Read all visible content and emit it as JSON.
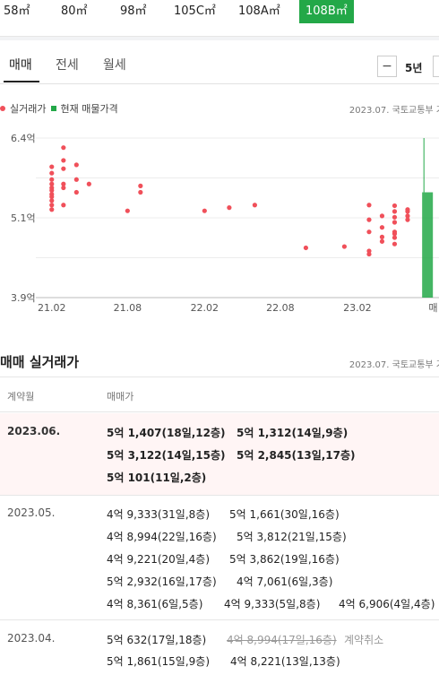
{
  "size_tabs": [
    "58㎡",
    "80㎡",
    "98㎡",
    "105C㎡",
    "108A㎡",
    "108B㎡"
  ],
  "selected_size": "108B㎡",
  "trade_tabs": [
    "매매",
    "전세",
    "월세"
  ],
  "active_tab": "매매",
  "period_minus": "−",
  "period_value": "5년",
  "legend": {
    "actual": "실거래가",
    "current": "현재 매물가격"
  },
  "source_label": "2023.07. 국토교통부 기",
  "colors": {
    "accent": "#23a848",
    "actual_point": "#f0505a",
    "highlight_row": "#fff5f5"
  },
  "chart_data": {
    "type": "scatter",
    "y_ticks": [
      "6.4억",
      "5.1억",
      "3.9억"
    ],
    "x_ticks": [
      "21.02",
      "21.08",
      "22.02",
      "22.08",
      "23.02",
      "매"
    ],
    "ylim": [
      3.9,
      6.4
    ],
    "x_domain": [
      "2020-12-25",
      "2023-08-15"
    ],
    "grid": true,
    "series": [
      {
        "name": "실거래가",
        "type": "scatter",
        "points": [
          [
            "2021-02-01",
            5.95
          ],
          [
            "2021-02-01",
            5.85
          ],
          [
            "2021-02-01",
            5.75
          ],
          [
            "2021-02-01",
            5.68
          ],
          [
            "2021-02-01",
            5.62
          ],
          [
            "2021-02-01",
            5.58
          ],
          [
            "2021-02-01",
            5.52
          ],
          [
            "2021-02-01",
            5.48
          ],
          [
            "2021-02-01",
            5.42
          ],
          [
            "2021-02-01",
            5.35
          ],
          [
            "2021-02-01",
            5.28
          ],
          [
            "2021-03-01",
            6.25
          ],
          [
            "2021-03-01",
            6.05
          ],
          [
            "2021-03-01",
            5.92
          ],
          [
            "2021-03-01",
            5.68
          ],
          [
            "2021-03-01",
            5.62
          ],
          [
            "2021-03-01",
            5.35
          ],
          [
            "2021-04-01",
            5.98
          ],
          [
            "2021-04-01",
            5.75
          ],
          [
            "2021-04-01",
            5.55
          ],
          [
            "2021-05-01",
            5.68
          ],
          [
            "2021-08-01",
            5.26
          ],
          [
            "2021-09-01",
            5.65
          ],
          [
            "2021-09-01",
            5.55
          ],
          [
            "2022-02-01",
            5.26
          ],
          [
            "2022-04-01",
            5.31
          ],
          [
            "2022-06-01",
            5.35
          ],
          [
            "2022-10-01",
            4.68
          ],
          [
            "2023-01-01",
            4.7
          ],
          [
            "2023-03-01",
            5.35
          ],
          [
            "2023-03-01",
            5.12
          ],
          [
            "2023-03-01",
            4.93
          ],
          [
            "2023-03-01",
            4.63
          ],
          [
            "2023-03-01",
            4.58
          ],
          [
            "2023-04-01",
            5.18
          ],
          [
            "2023-04-01",
            5.0
          ],
          [
            "2023-04-01",
            4.85
          ],
          [
            "2023-04-01",
            4.78
          ],
          [
            "2023-05-01",
            5.34
          ],
          [
            "2023-05-01",
            5.25
          ],
          [
            "2023-05-01",
            5.16
          ],
          [
            "2023-05-01",
            5.08
          ],
          [
            "2023-05-01",
            4.93
          ],
          [
            "2023-05-01",
            4.9
          ],
          [
            "2023-05-01",
            4.84
          ],
          [
            "2023-05-01",
            4.74
          ],
          [
            "2023-06-01",
            5.28
          ],
          [
            "2023-06-01",
            5.25
          ],
          [
            "2023-06-01",
            5.18
          ],
          [
            "2023-06-01",
            5.12
          ]
        ]
      },
      {
        "name": "현재 매물가격",
        "type": "band",
        "x": "2023-07-10",
        "low": 3.9,
        "high": 5.55,
        "max": 6.4
      }
    ]
  },
  "table": {
    "title": "매매 실거래가",
    "source": "2023.07. 국토교통부 기",
    "col_month": "계약월",
    "col_price": "매매가",
    "rows": [
      {
        "month": "2023.06.",
        "highlight": true,
        "lines": [
          [
            "5억 1,407(18일,12층)",
            "5억 1,312(14일,9층)"
          ],
          [
            "5억 3,122(14일,15층)",
            "5억 2,845(13일,17층)"
          ],
          [
            "5억 101(11일,2층)"
          ]
        ]
      },
      {
        "month": "2023.05.",
        "highlight": false,
        "lines": [
          [
            "4억 9,333(31일,8층)",
            "5억 1,661(30일,16층)"
          ],
          [
            "4억 8,994(22일,16층)",
            "5억 3,812(21일,15층)"
          ],
          [
            "4억 9,221(20일,4층)",
            "5억 3,862(19일,16층)"
          ],
          [
            "5억 2,932(16일,17층)",
            "4억 7,061(6일,3층)"
          ],
          [
            "4억 8,361(6일,5층)",
            "4억 9,333(5일,8층)",
            "4억 6,906(4일,4층)"
          ]
        ]
      },
      {
        "month": "2023.04.",
        "highlight": false,
        "lines": [
          [
            "5억 632(17일,18층)",
            "4억 8,994(17일,16층)"
          ],
          [
            "5억 1,861(15일,9층)",
            "4억 8,221(13일,13층)"
          ]
        ]
      }
    ],
    "cancel_label": "계약취소"
  }
}
